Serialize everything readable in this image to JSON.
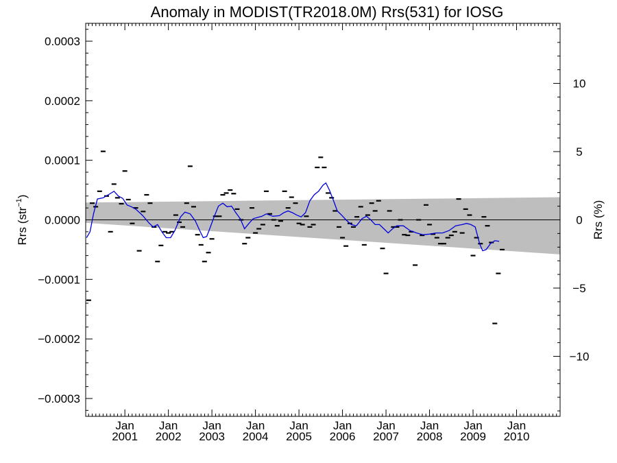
{
  "chart_data": {
    "type": "scatter",
    "title": "Anomaly in MODIST(TR2018.0M) Rrs(531) for IOSG",
    "ylabel_left_main": "Rrs (str",
    "ylabel_left_sup": "−1",
    "ylabel_left_close": ")",
    "ylabel_right": "Rrs (%)",
    "xlim": [
      2000.1,
      2011.0
    ],
    "ylim": [
      -0.00033,
      0.00033
    ],
    "y2lim": [
      -14.4,
      14.4
    ],
    "colors": {
      "monthly": "#000000",
      "smoothed": "#0000dd",
      "band": "#bebebe",
      "zero": "#000000"
    },
    "x_ticks": [
      {
        "x": 2001.0,
        "top": "Jan",
        "bottom": "2001"
      },
      {
        "x": 2002.0,
        "top": "Jan",
        "bottom": "2002"
      },
      {
        "x": 2003.0,
        "top": "Jan",
        "bottom": "2003"
      },
      {
        "x": 2004.0,
        "top": "Jan",
        "bottom": "2004"
      },
      {
        "x": 2005.0,
        "top": "Jan",
        "bottom": "2005"
      },
      {
        "x": 2006.0,
        "top": "Jan",
        "bottom": "2006"
      },
      {
        "x": 2007.0,
        "top": "Jan",
        "bottom": "2007"
      },
      {
        "x": 2008.0,
        "top": "Jan",
        "bottom": "2008"
      },
      {
        "x": 2009.0,
        "top": "Jan",
        "bottom": "2009"
      },
      {
        "x": 2010.0,
        "top": "Jan",
        "bottom": "2010"
      }
    ],
    "y_ticks_left": [
      {
        "v": 0.0003,
        "label": "0.0003"
      },
      {
        "v": 0.0002,
        "label": "0.0002"
      },
      {
        "v": 0.0001,
        "label": "0.0001"
      },
      {
        "v": 0.0,
        "label": "0.0000"
      },
      {
        "v": -0.0001,
        "label": "−0.0001"
      },
      {
        "v": -0.0002,
        "label": "−0.0002"
      },
      {
        "v": -0.0003,
        "label": "−0.0003"
      }
    ],
    "y_ticks_right": [
      {
        "v": 10,
        "label": "10"
      },
      {
        "v": 5,
        "label": "5"
      },
      {
        "v": 0,
        "label": "0"
      },
      {
        "v": -5,
        "label": "−5"
      },
      {
        "v": -10,
        "label": "−10"
      }
    ],
    "band": {
      "x": [
        2000.1,
        2011.0
      ],
      "upper": [
        2.9e-05,
        3.8e-05
      ],
      "lower": [
        -5e-06,
        -5.8e-05
      ]
    },
    "monthly": [
      [
        2000.17,
        -0.000135
      ],
      [
        2000.25,
        2.8e-05
      ],
      [
        2000.33,
        2.2e-05
      ],
      [
        2000.42,
        4.8e-05
      ],
      [
        2000.5,
        0.000115
      ],
      [
        2000.58,
        4e-05
      ],
      [
        2000.67,
        -2e-05
      ],
      [
        2000.75,
        6e-05
      ],
      [
        2000.83,
        3.7e-05
      ],
      [
        2000.92,
        2.7e-05
      ],
      [
        2001.0,
        8.2e-05
      ],
      [
        2001.08,
        3.4e-05
      ],
      [
        2001.17,
        -6e-06
      ],
      [
        2001.25,
        2e-05
      ],
      [
        2001.33,
        -5.2e-05
      ],
      [
        2001.42,
        1.4e-05
      ],
      [
        2001.5,
        4.2e-05
      ],
      [
        2001.58,
        2.8e-05
      ],
      [
        2001.67,
        -1.2e-05
      ],
      [
        2001.75,
        -7e-05
      ],
      [
        2001.83,
        -4.3e-05
      ],
      [
        2001.92,
        -2e-05
      ],
      [
        2002.0,
        -2.2e-05
      ],
      [
        2002.08,
        -2e-05
      ],
      [
        2002.17,
        8e-06
      ],
      [
        2002.25,
        -4e-06
      ],
      [
        2002.33,
        -1.2e-05
      ],
      [
        2002.42,
        2.8e-05
      ],
      [
        2002.5,
        9e-05
      ],
      [
        2002.58,
        2.2e-05
      ],
      [
        2002.67,
        -2.5e-05
      ],
      [
        2002.75,
        -4.2e-05
      ],
      [
        2002.83,
        -7e-05
      ],
      [
        2002.92,
        -5.5e-05
      ],
      [
        2003.0,
        -3.2e-05
      ],
      [
        2003.08,
        6e-06
      ],
      [
        2003.17,
        6e-06
      ],
      [
        2003.25,
        4.2e-05
      ],
      [
        2003.33,
        4.5e-05
      ],
      [
        2003.42,
        5e-05
      ],
      [
        2003.5,
        4.4e-05
      ],
      [
        2003.58,
        1.8e-05
      ],
      [
        2003.67,
        0.0
      ],
      [
        2003.75,
        -4e-05
      ],
      [
        2003.83,
        -3e-05
      ],
      [
        2003.92,
        2e-05
      ],
      [
        2004.0,
        -2.2e-05
      ],
      [
        2004.08,
        -1.5e-05
      ],
      [
        2004.17,
        -8e-06
      ],
      [
        2004.25,
        4.8e-05
      ],
      [
        2004.33,
        1e-05
      ],
      [
        2004.42,
        0.0
      ],
      [
        2004.5,
        -1e-05
      ],
      [
        2004.58,
        -2e-06
      ],
      [
        2004.67,
        4.8e-05
      ],
      [
        2004.75,
        2e-05
      ],
      [
        2004.83,
        3.8e-05
      ],
      [
        2004.92,
        2.8e-05
      ],
      [
        2005.0,
        -6e-06
      ],
      [
        2005.08,
        -8e-06
      ],
      [
        2005.17,
        6e-06
      ],
      [
        2005.25,
        -1.2e-05
      ],
      [
        2005.33,
        -8e-06
      ],
      [
        2005.42,
        8.8e-05
      ],
      [
        2005.5,
        0.000105
      ],
      [
        2005.58,
        8.8e-05
      ],
      [
        2005.67,
        4.5e-05
      ],
      [
        2005.75,
        3.7e-05
      ],
      [
        2005.83,
        1.5e-05
      ],
      [
        2005.92,
        -1.2e-05
      ],
      [
        2006.0,
        -3e-05
      ],
      [
        2006.08,
        -4.4e-05
      ],
      [
        2006.17,
        -6e-06
      ],
      [
        2006.25,
        -1.2e-05
      ],
      [
        2006.33,
        5e-06
      ],
      [
        2006.42,
        2.2e-05
      ],
      [
        2006.5,
        -4.2e-05
      ],
      [
        2006.58,
        8e-06
      ],
      [
        2006.67,
        2.8e-05
      ],
      [
        2006.75,
        1.5e-05
      ],
      [
        2006.83,
        3.2e-05
      ],
      [
        2006.92,
        -4.8e-05
      ],
      [
        2007.0,
        -9e-05
      ],
      [
        2007.08,
        1.5e-05
      ],
      [
        2007.17,
        -1.2e-05
      ],
      [
        2007.25,
        -1.2e-05
      ],
      [
        2007.33,
        0.0
      ],
      [
        2007.42,
        -2.5e-05
      ],
      [
        2007.5,
        -2.6e-05
      ],
      [
        2007.58,
        -2e-05
      ],
      [
        2007.67,
        -7.6e-05
      ],
      [
        2007.75,
        0.0
      ],
      [
        2007.83,
        -2.6e-05
      ],
      [
        2007.92,
        2.5e-05
      ],
      [
        2008.0,
        -8e-06
      ],
      [
        2008.08,
        -2.4e-05
      ],
      [
        2008.17,
        -3e-05
      ],
      [
        2008.25,
        -4e-05
      ],
      [
        2008.33,
        -4e-05
      ],
      [
        2008.42,
        -3e-05
      ],
      [
        2008.5,
        -2.6e-05
      ],
      [
        2008.58,
        -2e-05
      ],
      [
        2008.67,
        3.5e-05
      ],
      [
        2008.75,
        -2.2e-05
      ],
      [
        2008.83,
        1.8e-05
      ],
      [
        2008.92,
        8e-06
      ],
      [
        2009.0,
        -6e-05
      ],
      [
        2009.08,
        -3e-05
      ],
      [
        2009.17,
        -4e-05
      ],
      [
        2009.25,
        5e-06
      ],
      [
        2009.33,
        -1e-05
      ],
      [
        2009.42,
        -3.8e-05
      ],
      [
        2009.5,
        -0.000174
      ],
      [
        2009.58,
        -9e-05
      ],
      [
        2009.67,
        -5e-05
      ]
    ],
    "smoothed": [
      [
        2000.12,
        -3e-05
      ],
      [
        2000.2,
        -2e-05
      ],
      [
        2000.28,
        1e-05
      ],
      [
        2000.37,
        3.5e-05
      ],
      [
        2000.5,
        3.7e-05
      ],
      [
        2000.62,
        4.2e-05
      ],
      [
        2000.75,
        4.8e-05
      ],
      [
        2000.85,
        4e-05
      ],
      [
        2000.95,
        3.6e-05
      ],
      [
        2001.05,
        2.5e-05
      ],
      [
        2001.15,
        2.2e-05
      ],
      [
        2001.25,
        1.8e-05
      ],
      [
        2001.4,
        8e-06
      ],
      [
        2001.55,
        -5e-06
      ],
      [
        2001.65,
        -1.2e-05
      ],
      [
        2001.75,
        -8e-06
      ],
      [
        2001.85,
        -2e-05
      ],
      [
        2001.95,
        -3e-05
      ],
      [
        2002.05,
        -3e-05
      ],
      [
        2002.15,
        -1.8e-05
      ],
      [
        2002.28,
        5e-06
      ],
      [
        2002.38,
        1.3e-05
      ],
      [
        2002.5,
        1e-05
      ],
      [
        2002.62,
        -2e-06
      ],
      [
        2002.72,
        -1.8e-05
      ],
      [
        2002.8,
        -3e-05
      ],
      [
        2002.88,
        -2.8e-05
      ],
      [
        2002.95,
        -1.5e-05
      ],
      [
        2003.05,
        5e-06
      ],
      [
        2003.15,
        2.3e-05
      ],
      [
        2003.25,
        2.8e-05
      ],
      [
        2003.35,
        2.2e-05
      ],
      [
        2003.45,
        2.3e-05
      ],
      [
        2003.55,
        1.2e-05
      ],
      [
        2003.65,
        2e-06
      ],
      [
        2003.75,
        -1.5e-05
      ],
      [
        2003.85,
        -6e-06
      ],
      [
        2003.95,
        2e-06
      ],
      [
        2004.05,
        4e-06
      ],
      [
        2004.15,
        6e-06
      ],
      [
        2004.25,
        1e-05
      ],
      [
        2004.4,
        6e-06
      ],
      [
        2004.55,
        7e-06
      ],
      [
        2004.65,
        1.2e-05
      ],
      [
        2004.75,
        1.5e-05
      ],
      [
        2004.85,
        1.2e-05
      ],
      [
        2004.95,
        8e-06
      ],
      [
        2005.05,
        5e-06
      ],
      [
        2005.15,
        1.2e-05
      ],
      [
        2005.25,
        3.2e-05
      ],
      [
        2005.35,
        4.2e-05
      ],
      [
        2005.45,
        4.8e-05
      ],
      [
        2005.55,
        5.8e-05
      ],
      [
        2005.62,
        6.2e-05
      ],
      [
        2005.7,
        5e-05
      ],
      [
        2005.78,
        3.5e-05
      ],
      [
        2005.88,
        1.5e-05
      ],
      [
        2005.98,
        8e-06
      ],
      [
        2006.08,
        0.0
      ],
      [
        2006.2,
        -8e-06
      ],
      [
        2006.32,
        -1e-05
      ],
      [
        2006.45,
        2e-06
      ],
      [
        2006.55,
        6e-06
      ],
      [
        2006.65,
        0.0
      ],
      [
        2006.75,
        -8e-06
      ],
      [
        2006.85,
        -8e-06
      ],
      [
        2006.95,
        -1.5e-05
      ],
      [
        2007.05,
        -2.2e-05
      ],
      [
        2007.15,
        -1.5e-05
      ],
      [
        2007.25,
        -1e-05
      ],
      [
        2007.4,
        -1e-05
      ],
      [
        2007.55,
        -1.8e-05
      ],
      [
        2007.7,
        -2.2e-05
      ],
      [
        2007.85,
        -2.5e-05
      ],
      [
        2008.0,
        -2.4e-05
      ],
      [
        2008.15,
        -2.2e-05
      ],
      [
        2008.3,
        -2.2e-05
      ],
      [
        2008.45,
        -1.8e-05
      ],
      [
        2008.6,
        -1e-05
      ],
      [
        2008.75,
        -8e-06
      ],
      [
        2008.85,
        -6e-06
      ],
      [
        2008.95,
        -8e-06
      ],
      [
        2009.05,
        -1.2e-05
      ],
      [
        2009.15,
        -4e-05
      ],
      [
        2009.22,
        -5.2e-05
      ],
      [
        2009.3,
        -5e-05
      ],
      [
        2009.4,
        -4e-05
      ],
      [
        2009.5,
        -3.5e-05
      ],
      [
        2009.6,
        -3.6e-05
      ]
    ]
  }
}
